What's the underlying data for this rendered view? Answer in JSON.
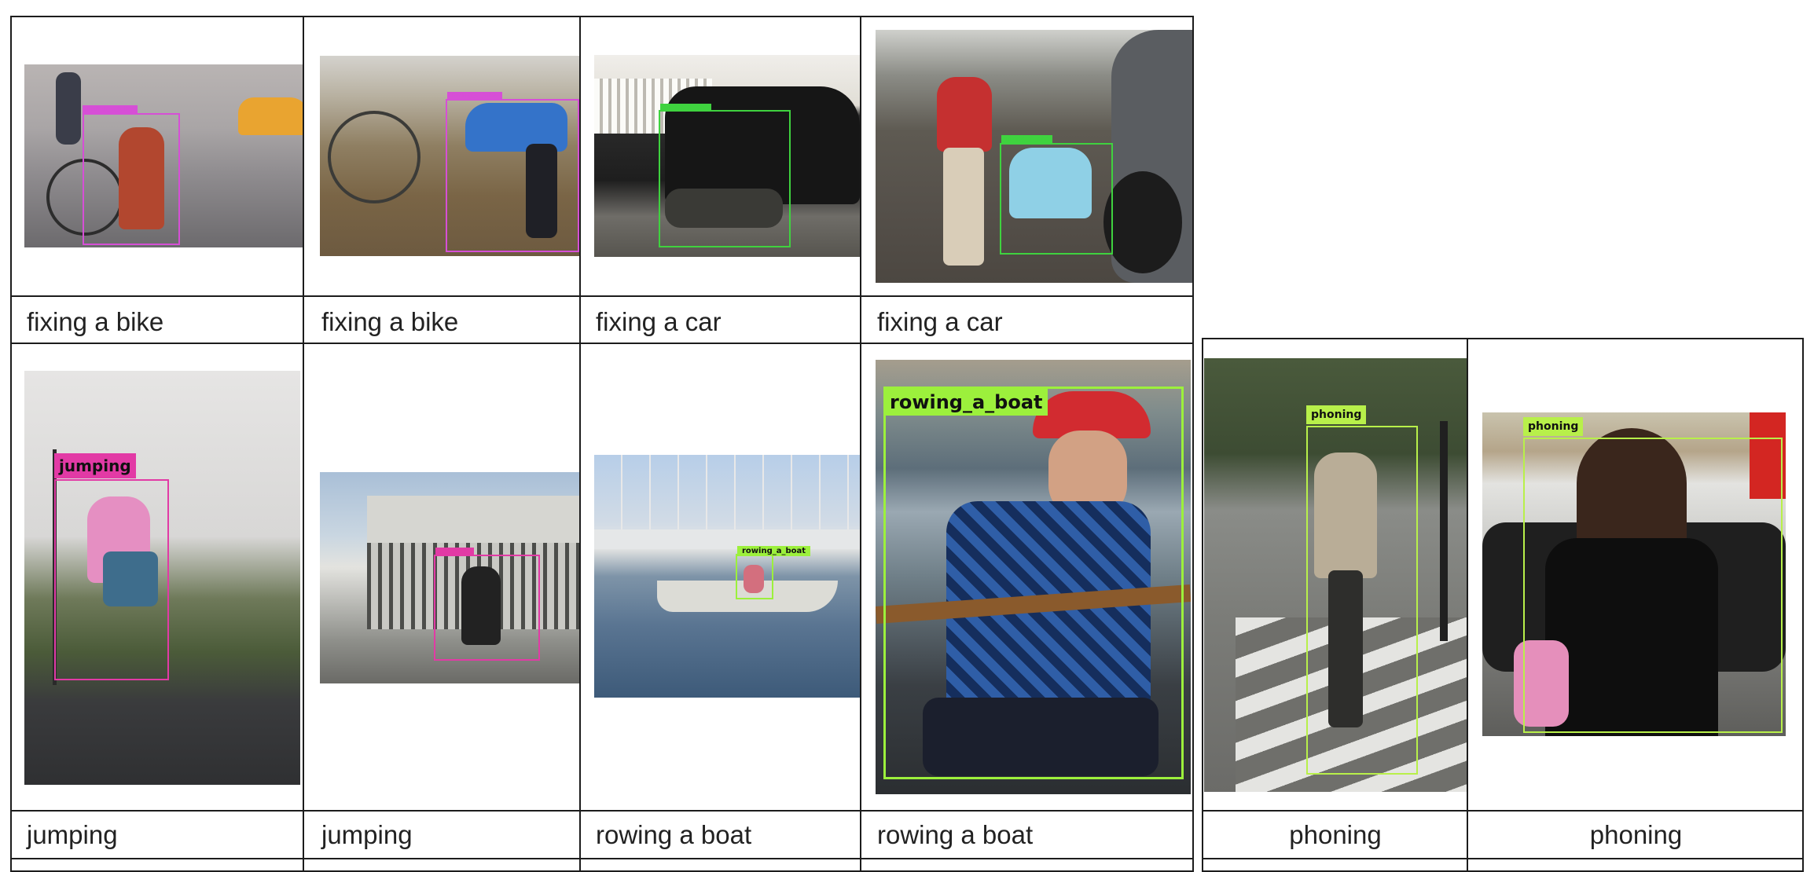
{
  "row1": [
    {
      "caption": "fixing a bike",
      "tag": "fixing_a_bike",
      "box_color": "#d64fd6"
    },
    {
      "caption": "fixing a bike",
      "tag": "fixing_a_bike",
      "box_color": "#d64fd6"
    },
    {
      "caption": "fixing a car",
      "tag": "fixing_a_car",
      "box_color": "#3fd23f"
    },
    {
      "caption": "fixing a car",
      "tag": "fixing_a_car",
      "box_color": "#3fd23f"
    }
  ],
  "row2": [
    {
      "caption": "jumping",
      "tag": "jumping",
      "box_color": "#e23aa5"
    },
    {
      "caption": "jumping",
      "tag": "jumping",
      "box_color": "#e23aa5"
    },
    {
      "caption": "rowing a boat",
      "tag": "rowing_a_boat",
      "box_color": "#9cf03c"
    },
    {
      "caption": "rowing a boat",
      "tag": "rowing_a_boat",
      "box_color": "#9cf03c"
    }
  ],
  "side": [
    {
      "caption": "phoning",
      "tag": "phoning",
      "box_color": "#b8f04a"
    },
    {
      "caption": "phoning",
      "tag": "phoning",
      "box_color": "#b8f04a"
    }
  ]
}
